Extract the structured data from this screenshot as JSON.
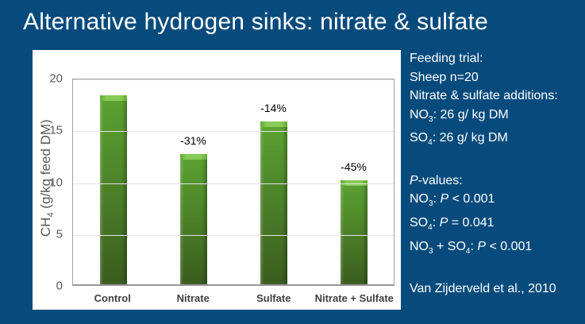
{
  "slide": {
    "title": "Alternative hydrogen sinks: nitrate & sulfate",
    "background_color": "#074b7c",
    "text_color": "#ffffff"
  },
  "chart_data": {
    "type": "bar",
    "title": "",
    "categories": [
      "Control",
      "Nitrate",
      "Sulfate",
      "Nitrate + Sulfate"
    ],
    "values": [
      18.2,
      12.6,
      15.7,
      10.0
    ],
    "bar_labels": [
      "",
      "-31%",
      "-14%",
      "-45%"
    ],
    "ylabel": "CH4 (g/kg feed DM)",
    "ylabel_segments": [
      {
        "t": "CH"
      },
      {
        "t": "4",
        "sub": true
      },
      {
        "t": " (g/kg feed DM)"
      }
    ],
    "xlabel": "",
    "yticks": [
      0,
      5,
      10,
      15,
      20
    ],
    "gridline_values": [
      5,
      10,
      15,
      20
    ],
    "ylim": [
      0,
      20
    ],
    "grid": true,
    "legend": false,
    "colors": {
      "bar_top": "#5ba332",
      "bar_mid": "#4a7d27",
      "bar_bottom": "#3a5c1e",
      "cap_light": "#86cb55",
      "cap_dark": "#5fa933",
      "tick_text": "#595959",
      "category_text": "#3f3f3f",
      "annotation_text": "#000000",
      "gridline": "#e2e2e2",
      "plot_border": "#a3a3a3",
      "panel_background": "#ffffff"
    }
  },
  "info_panel": {
    "groups": [
      {
        "lines": [
          [
            {
              "t": "Feeding trial:"
            }
          ],
          [
            {
              "t": "Sheep n=20"
            }
          ],
          [
            {
              "t": "Nitrate & sulfate additions:"
            }
          ],
          [
            {
              "t": "NO"
            },
            {
              "t": "3",
              "sub": true
            },
            {
              "t": ": 26 g/ kg DM"
            }
          ],
          [
            {
              "t": "SO"
            },
            {
              "t": "4",
              "sub": true
            },
            {
              "t": ": 26 g/ kg DM"
            }
          ]
        ]
      },
      {
        "lines": [
          [
            {
              "t": "P",
              "i": true
            },
            {
              "t": "-values:"
            }
          ],
          [
            {
              "t": "NO"
            },
            {
              "t": "3",
              "sub": true
            },
            {
              "t": ": "
            },
            {
              "t": "P",
              "i": true
            },
            {
              "t": " < 0.001"
            }
          ],
          [
            {
              "t": "SO"
            },
            {
              "t": "4",
              "sub": true
            },
            {
              "t": ": "
            },
            {
              "t": "P",
              "i": true
            },
            {
              "t": " = 0.041"
            }
          ],
          [
            {
              "t": "NO"
            },
            {
              "t": "3",
              "sub": true
            },
            {
              "t": " + SO"
            },
            {
              "t": "4",
              "sub": true
            },
            {
              "t": ": "
            },
            {
              "t": "P",
              "i": true
            },
            {
              "t": " < 0.001"
            }
          ]
        ]
      },
      {
        "lines": [
          [
            {
              "t": "Van Zijderveld et al., 2010"
            }
          ]
        ]
      }
    ]
  }
}
